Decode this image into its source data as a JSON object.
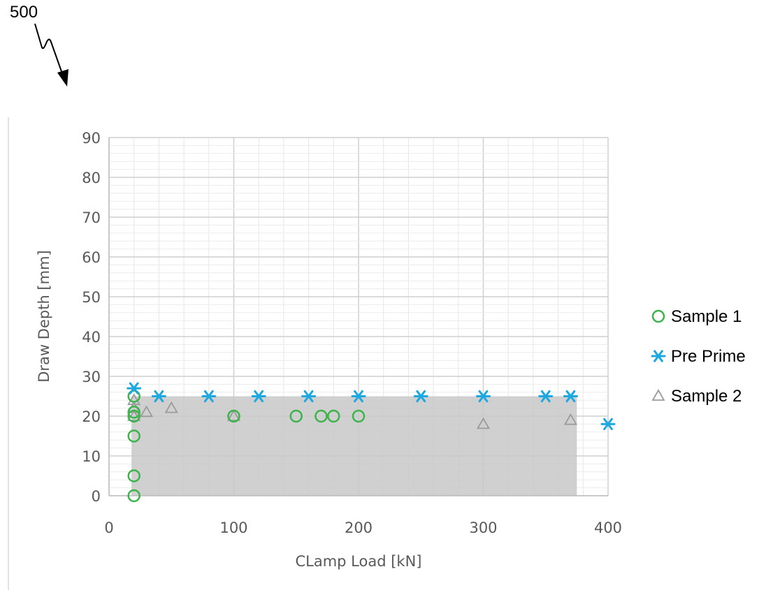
{
  "figure_label": "500",
  "colors": {
    "sample1": "#3cb44b",
    "pre_prime": "#1ea8e0",
    "sample2": "#9b9b9b",
    "shaded_region": "#c8c8c8",
    "grid": "#d9d9d9"
  },
  "chart_data": {
    "type": "scatter",
    "title": "",
    "xlabel": "CLamp Load [kN]",
    "ylabel": "Draw Depth [mm]",
    "xlim": [
      0,
      400
    ],
    "ylim": [
      0,
      90
    ],
    "xticks": [
      0,
      100,
      200,
      300,
      400
    ],
    "yticks": [
      0,
      10,
      20,
      30,
      40,
      50,
      60,
      70,
      80,
      90
    ],
    "grid": true,
    "legend_position": "right",
    "shaded_region": {
      "x": [
        18,
        375
      ],
      "y": [
        0,
        25
      ]
    },
    "series": [
      {
        "name": "Sample 1",
        "marker": "circle",
        "points": [
          [
            20,
            0
          ],
          [
            20,
            5
          ],
          [
            20,
            15
          ],
          [
            20,
            20
          ],
          [
            20,
            21
          ],
          [
            20,
            25
          ],
          [
            100,
            20
          ],
          [
            150,
            20
          ],
          [
            170,
            20
          ],
          [
            180,
            20
          ],
          [
            200,
            20
          ]
        ]
      },
      {
        "name": "Pre Prime",
        "marker": "asterisk",
        "points": [
          [
            20,
            27
          ],
          [
            40,
            25
          ],
          [
            80,
            25
          ],
          [
            120,
            25
          ],
          [
            160,
            25
          ],
          [
            200,
            25
          ],
          [
            250,
            25
          ],
          [
            300,
            25
          ],
          [
            350,
            25
          ],
          [
            370,
            25
          ],
          [
            400,
            18
          ]
        ]
      },
      {
        "name": "Sample 2",
        "marker": "triangle",
        "points": [
          [
            20,
            20
          ],
          [
            20,
            22
          ],
          [
            20,
            24
          ],
          [
            30,
            21
          ],
          [
            50,
            22
          ],
          [
            100,
            20
          ],
          [
            300,
            18
          ],
          [
            370,
            19
          ]
        ]
      }
    ]
  }
}
